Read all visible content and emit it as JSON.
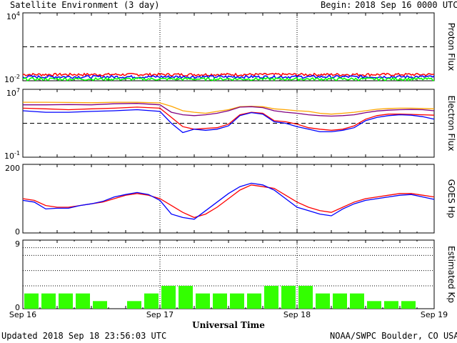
{
  "header": {
    "title": "Satellite Environment (3 day)",
    "begin_label": "Begin:",
    "begin_value": "2018 Sep 16 0000 UTC"
  },
  "footer": {
    "updated": "Updated 2018 Sep 18 23:56:03 UTC",
    "credit": "NOAA/SWPC Boulder, CO USA"
  },
  "colors": {
    "red": "#ff0000",
    "blue": "#0000ff",
    "green": "#00ff00",
    "orange": "#ffa500",
    "purple": "#800080",
    "kp_bar": "#33ff00"
  },
  "chart_data": [
    {
      "type": "line",
      "ylabel": "Proton Flux",
      "yscale": "log",
      "ylim": [
        0.01,
        10000
      ],
      "ytick_labels": [
        "10^4",
        "10^-2"
      ],
      "reference_level": 10,
      "x_range_hours": [
        0,
        72
      ],
      "series": [
        {
          "color": "#ff0000",
          "approx_value": 0.035
        },
        {
          "color": "#0000ff",
          "approx_value": 0.022
        },
        {
          "color": "#00ff00",
          "approx_value": 0.014
        }
      ]
    },
    {
      "type": "line",
      "ylabel": "Electron Flux",
      "yscale": "log",
      "ylim": [
        0.1,
        10000000
      ],
      "ytick_labels": [
        "10^7",
        "10^-1"
      ],
      "reference_level": 1000,
      "x_hours": [
        0,
        4,
        8,
        12,
        16,
        20,
        24,
        26,
        28,
        30,
        32,
        34,
        36,
        38,
        40,
        42,
        44,
        46,
        48,
        50,
        52,
        54,
        56,
        58,
        60,
        62,
        64,
        66,
        68,
        70,
        72
      ],
      "series": [
        {
          "color": "#ffa500",
          "values": [
            300000,
            300000,
            280000,
            260000,
            300000,
            300000,
            250000,
            100000,
            30000,
            20000,
            15000,
            25000,
            40000,
            90000,
            100000,
            90000,
            50000,
            40000,
            30000,
            25000,
            15000,
            12000,
            15000,
            20000,
            30000,
            45000,
            55000,
            60000,
            60000,
            55000,
            50000
          ]
        },
        {
          "color": "#800080",
          "values": [
            150000,
            150000,
            160000,
            150000,
            200000,
            220000,
            150000,
            20000,
            10000,
            8000,
            10000,
            15000,
            30000,
            80000,
            90000,
            70000,
            30000,
            20000,
            15000,
            10000,
            8000,
            7000,
            8000,
            10000,
            18000,
            28000,
            35000,
            40000,
            42000,
            40000,
            30000
          ]
        },
        {
          "color": "#ff0000",
          "values": [
            60000,
            50000,
            40000,
            50000,
            60000,
            80000,
            60000,
            5000,
            400,
            200,
            250,
            300,
            800,
            10000,
            20000,
            15000,
            2000,
            1500,
            800,
            300,
            200,
            150,
            200,
            500,
            3000,
            8000,
            12000,
            12000,
            11000,
            10000,
            9000
          ]
        },
        {
          "color": "#0000ff",
          "values": [
            30000,
            20000,
            20000,
            25000,
            30000,
            40000,
            25000,
            1000,
            80,
            200,
            150,
            200,
            500,
            8000,
            18000,
            12000,
            1500,
            1000,
            400,
            200,
            100,
            100,
            150,
            300,
            2000,
            5000,
            8000,
            10000,
            9000,
            6000,
            3000
          ]
        }
      ]
    },
    {
      "type": "line",
      "ylabel": "GOES Hp",
      "ylim": [
        0,
        200
      ],
      "ytick_labels": [
        "200",
        "0"
      ],
      "x_hours": [
        0,
        2,
        4,
        6,
        8,
        10,
        12,
        14,
        16,
        18,
        20,
        22,
        24,
        26,
        28,
        30,
        32,
        34,
        36,
        38,
        40,
        42,
        44,
        46,
        48,
        50,
        52,
        54,
        56,
        58,
        60,
        62,
        64,
        66,
        68,
        70,
        72
      ],
      "series": [
        {
          "color": "#ff0000",
          "values": [
            100,
            95,
            80,
            75,
            75,
            80,
            85,
            90,
            100,
            110,
            115,
            110,
            100,
            80,
            60,
            45,
            55,
            75,
            100,
            125,
            140,
            135,
            130,
            110,
            90,
            75,
            65,
            60,
            75,
            90,
            100,
            105,
            110,
            115,
            115,
            110,
            105
          ]
        },
        {
          "color": "#0000ff",
          "values": [
            95,
            90,
            70,
            72,
            72,
            80,
            85,
            92,
            105,
            112,
            118,
            112,
            95,
            55,
            45,
            40,
            65,
            90,
            115,
            135,
            145,
            140,
            125,
            100,
            75,
            65,
            55,
            50,
            70,
            85,
            95,
            100,
            105,
            110,
            112,
            105,
            98
          ]
        }
      ]
    },
    {
      "type": "bar",
      "ylabel": "Estimated Kp",
      "ylim": [
        0,
        9
      ],
      "ytick_labels": [
        "9",
        "0"
      ],
      "xlabel": "Universal Time",
      "x_tick_labels": [
        "Sep 16",
        "Sep 17",
        "Sep 18",
        "Sep 19"
      ],
      "values": [
        2,
        2,
        2,
        2,
        1,
        0,
        1,
        2,
        3,
        3,
        2,
        2,
        2,
        2,
        3,
        3,
        3,
        2,
        2,
        2,
        1,
        1,
        1,
        0
      ]
    }
  ]
}
